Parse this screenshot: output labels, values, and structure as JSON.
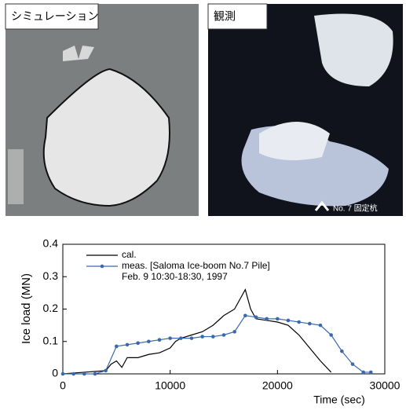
{
  "photos": [
    {
      "label": "シミュレーション"
    },
    {
      "label": "観測",
      "annotation": "No. 7 固定杭"
    }
  ],
  "chart_data": {
    "type": "line",
    "ylabel": "Ice load (MN)",
    "xlabel": "Time (sec)",
    "annotation": "Feb. 9  10:30-18:30, 1997",
    "xlim": [
      0,
      30000
    ],
    "ylim": [
      0,
      0.4
    ],
    "xticks": [
      0,
      10000,
      20000,
      30000
    ],
    "yticks": [
      0,
      0.1,
      0.2,
      0.3,
      0.4
    ],
    "series": [
      {
        "name": "cal.",
        "color": "#000000",
        "marker": false,
        "x": [
          0,
          2000,
          4000,
          4500,
          5000,
          5500,
          6000,
          7000,
          8000,
          9000,
          10000,
          10500,
          11000,
          12000,
          13000,
          14000,
          15000,
          16000,
          16500,
          17000,
          17500,
          18000,
          19000,
          20000,
          21000,
          22000,
          23000,
          24000,
          25000
        ],
        "values": [
          0,
          0.005,
          0.01,
          0.03,
          0.04,
          0.02,
          0.05,
          0.05,
          0.06,
          0.065,
          0.08,
          0.1,
          0.11,
          0.12,
          0.13,
          0.15,
          0.18,
          0.2,
          0.23,
          0.26,
          0.2,
          0.17,
          0.165,
          0.16,
          0.15,
          0.12,
          0.08,
          0.04,
          0.005
        ]
      },
      {
        "name": "meas. [Saloma Ice-boom No.7 Pile]",
        "color": "#3a68b0",
        "marker": true,
        "x": [
          0,
          1000,
          2000,
          3000,
          4000,
          5000,
          6000,
          7000,
          8000,
          9000,
          10000,
          11000,
          12000,
          13000,
          14000,
          15000,
          16000,
          17000,
          18000,
          19000,
          20000,
          21000,
          22000,
          23000,
          24000,
          25000,
          26000,
          27000,
          28000,
          28700
        ],
        "values": [
          0,
          0,
          0,
          0,
          0.01,
          0.085,
          0.09,
          0.095,
          0.1,
          0.105,
          0.11,
          0.11,
          0.11,
          0.115,
          0.115,
          0.12,
          0.13,
          0.18,
          0.175,
          0.17,
          0.17,
          0.165,
          0.16,
          0.155,
          0.15,
          0.12,
          0.07,
          0.03,
          0.005,
          0.005
        ]
      }
    ]
  }
}
